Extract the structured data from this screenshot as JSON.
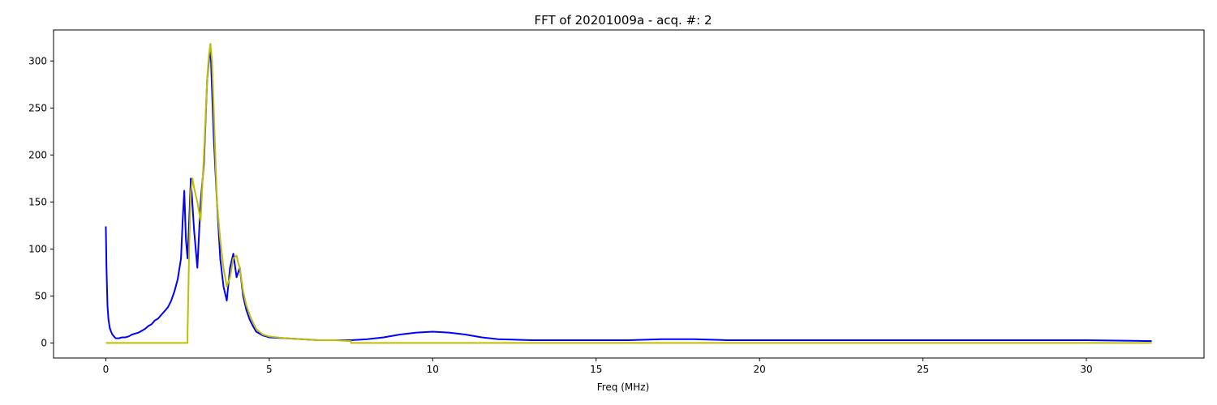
{
  "chart_data": {
    "type": "line",
    "title": "FFT of 20201009a - acq. #: 2",
    "xlabel": "Freq (MHz)",
    "ylabel": "",
    "xlim": [
      -1.6,
      33.6
    ],
    "ylim": [
      -16,
      333
    ],
    "xticks": [
      0,
      5,
      10,
      15,
      20,
      25,
      30
    ],
    "xtick_labels": [
      "0",
      "5",
      "10",
      "15",
      "20",
      "25",
      "30"
    ],
    "yticks": [
      0,
      50,
      100,
      150,
      200,
      250,
      300
    ],
    "ytick_labels": [
      "0",
      "50",
      "100",
      "150",
      "200",
      "250",
      "300"
    ],
    "grid": false,
    "legend": "none",
    "series": [
      {
        "color": "#0000ff",
        "x": [
          0.0,
          0.02,
          0.05,
          0.08,
          0.12,
          0.16,
          0.2,
          0.25,
          0.3,
          0.4,
          0.5,
          0.6,
          0.7,
          0.8,
          0.9,
          1.0,
          1.1,
          1.2,
          1.3,
          1.4,
          1.5,
          1.6,
          1.7,
          1.8,
          1.9,
          2.0,
          2.1,
          2.2,
          2.3,
          2.35,
          2.4,
          2.45,
          2.5,
          2.55,
          2.6,
          2.7,
          2.8,
          2.9,
          3.0,
          3.1,
          3.2,
          3.3,
          3.4,
          3.5,
          3.6,
          3.7,
          3.8,
          3.9,
          4.0,
          4.1,
          4.2,
          4.3,
          4.4,
          4.5,
          4.6,
          4.8,
          5.0,
          5.5,
          6.0,
          6.5,
          7.0,
          7.5,
          8.0,
          8.5,
          9.0,
          9.5,
          10.0,
          10.5,
          11.0,
          11.5,
          12.0,
          13.0,
          14.0,
          15.0,
          16.0,
          17.0,
          18.0,
          19.0,
          20.0,
          22.0,
          24.0,
          26.0,
          28.0,
          30.0,
          32.0
        ],
        "y": [
          124,
          80,
          40,
          25,
          16,
          12,
          9,
          7,
          5,
          5,
          6,
          6,
          7,
          9,
          10,
          11,
          13,
          15,
          18,
          20,
          24,
          26,
          30,
          34,
          38,
          45,
          55,
          68,
          90,
          130,
          162,
          110,
          90,
          130,
          175,
          120,
          80,
          150,
          190,
          280,
          318,
          220,
          150,
          90,
          60,
          45,
          80,
          95,
          70,
          80,
          50,
          35,
          25,
          18,
          12,
          8,
          6,
          5,
          4,
          3,
          3,
          3,
          4,
          6,
          9,
          11,
          12,
          11,
          9,
          6,
          4,
          3,
          3,
          3,
          3,
          4,
          4,
          3,
          3,
          3,
          3,
          3,
          3,
          3,
          2
        ]
      },
      {
        "color": "#bfbf00",
        "x": [
          0.0,
          2.5,
          2.5,
          2.55,
          2.6,
          2.65,
          2.7,
          2.8,
          2.9,
          3.0,
          3.05,
          3.1,
          3.15,
          3.2,
          3.25,
          3.3,
          3.35,
          3.4,
          3.5,
          3.6,
          3.7,
          3.8,
          3.9,
          4.0,
          4.05,
          4.1,
          4.2,
          4.3,
          4.4,
          4.5,
          4.6,
          4.8,
          5.0,
          5.5,
          6.0,
          6.5,
          7.0,
          7.5,
          7.5,
          10.0,
          15.0,
          20.0,
          25.0,
          30.0,
          32.0
        ],
        "y": [
          0,
          0,
          10,
          100,
          160,
          175,
          165,
          150,
          130,
          200,
          240,
          280,
          305,
          318,
          300,
          250,
          200,
          150,
          110,
          80,
          60,
          70,
          90,
          93,
          85,
          80,
          55,
          40,
          30,
          22,
          15,
          9,
          7,
          5,
          4,
          3,
          3,
          2,
          0,
          0,
          0,
          0,
          0,
          0,
          0
        ]
      }
    ]
  }
}
